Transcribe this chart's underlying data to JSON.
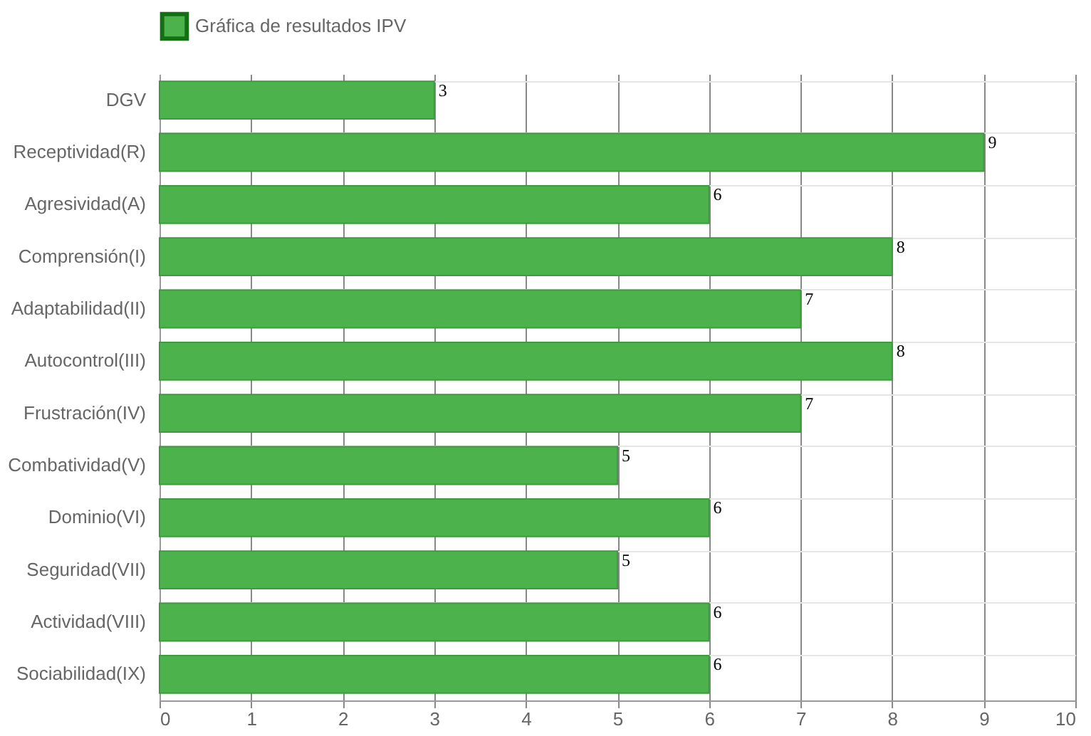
{
  "chart_data": {
    "type": "bar",
    "orientation": "horizontal",
    "categories": [
      "DGV",
      "Receptividad(R)",
      "Agresividad(A)",
      "Comprensión(I)",
      "Adaptabilidad(II)",
      "Autocontrol(III)",
      "Frustración(IV)",
      "Combatividad(V)",
      "Dominio(VI)",
      "Seguridad(VII)",
      "Actividad(VIII)",
      "Sociabilidad(IX)"
    ],
    "series": [
      {
        "name": "Gráfica de resultados IPV",
        "color": "#4cb34c",
        "values": [
          3,
          9,
          6,
          8,
          7,
          8,
          7,
          5,
          6,
          5,
          6,
          6
        ]
      }
    ],
    "xlim": [
      0,
      10
    ],
    "xticks": [
      0,
      1,
      2,
      3,
      4,
      5,
      6,
      7,
      8,
      9,
      10
    ],
    "grid": true,
    "legend": "top",
    "data_labels": true
  }
}
